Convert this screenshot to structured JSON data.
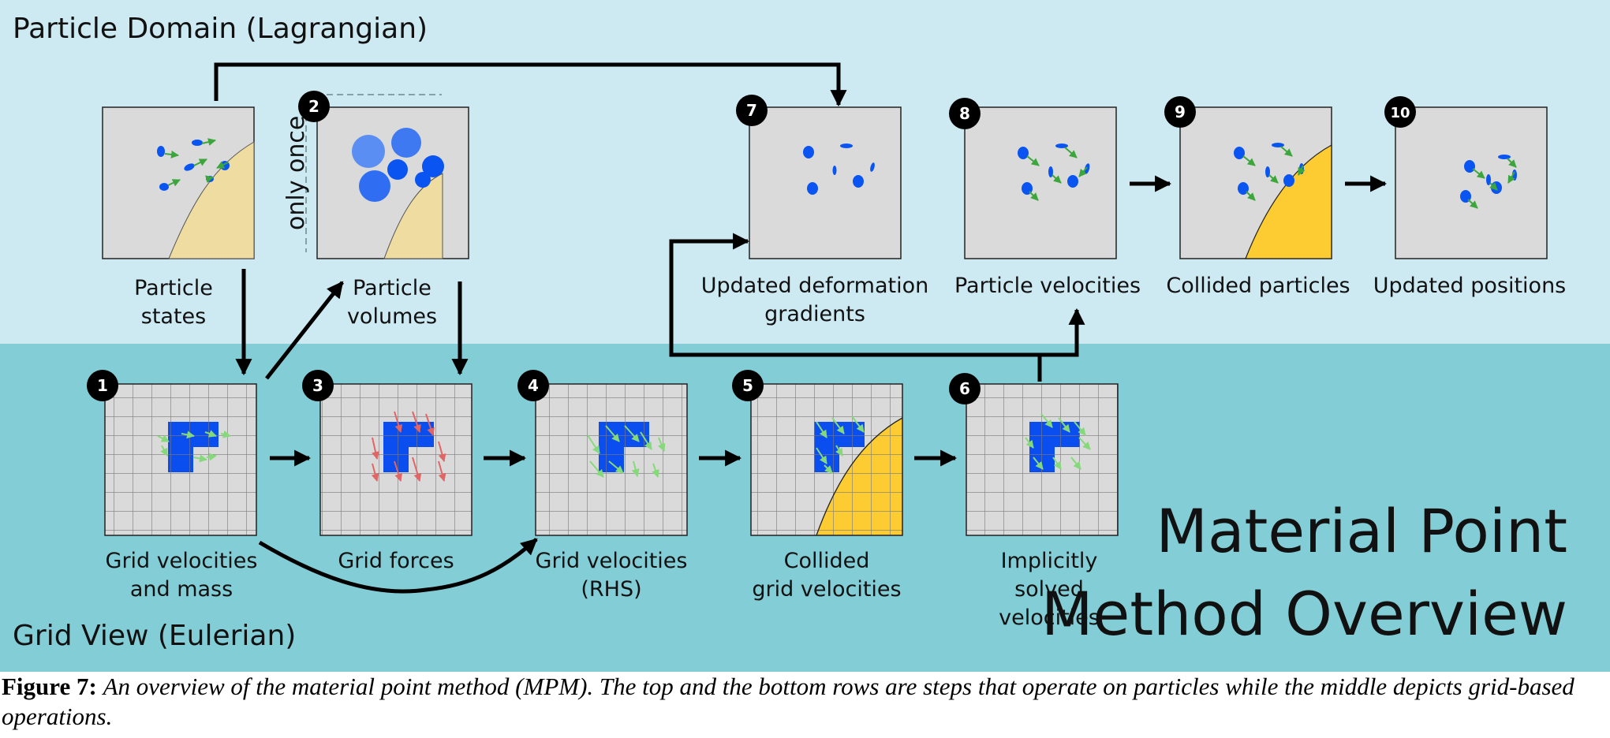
{
  "regions": {
    "particle_domain": "Particle Domain (Lagrangian)",
    "grid_view": "Grid View (Eulerian)"
  },
  "big_title": {
    "line1": "Material Point",
    "line2": "Method Overview"
  },
  "side_note": "only once",
  "steps": [
    {
      "id": "particle-states",
      "badge": "",
      "label": [
        "Particle",
        "states"
      ]
    },
    {
      "id": "particle-volumes",
      "badge": "2",
      "label": [
        "Particle",
        "volumes"
      ]
    },
    {
      "id": "deformation-gradients",
      "badge": "7",
      "label": [
        "Updated deformation",
        "gradients"
      ]
    },
    {
      "id": "particle-velocities",
      "badge": "8",
      "label": [
        "Particle velocities"
      ]
    },
    {
      "id": "collided-particles",
      "badge": "9",
      "label": [
        "Collided particles"
      ]
    },
    {
      "id": "updated-positions",
      "badge": "10",
      "label": [
        "Updated positions"
      ]
    },
    {
      "id": "grid-velocities-mass",
      "badge": "1",
      "label": [
        "Grid velocities",
        "and mass"
      ]
    },
    {
      "id": "grid-forces",
      "badge": "3",
      "label": [
        "Grid forces"
      ]
    },
    {
      "id": "grid-velocities-rhs",
      "badge": "4",
      "label": [
        "Grid velocities",
        "(RHS)"
      ]
    },
    {
      "id": "collided-grid-velocities",
      "badge": "5",
      "label": [
        "Collided",
        "grid velocities"
      ]
    },
    {
      "id": "implicitly-solved",
      "badge": "6",
      "label": [
        "Implicitly",
        "solved",
        "velocities"
      ]
    }
  ],
  "caption": {
    "figure": "Figure 7:",
    "text": "An overview of the material point method (MPM). The top and the bottom rows are steps that operate on particles while the middle depicts grid-based operations."
  },
  "colors": {
    "top_band": "#cde9f2",
    "bottom_band": "#83cdd6",
    "panel": "#dadada",
    "particle": "#0a55f2",
    "grid_fill": "#0a4ef0",
    "sand": "#eedca0",
    "gold": "#fdcb32",
    "arrow_green": "#3ca63c",
    "arrow_light_green": "#86d97a",
    "arrow_red": "#e26565"
  }
}
